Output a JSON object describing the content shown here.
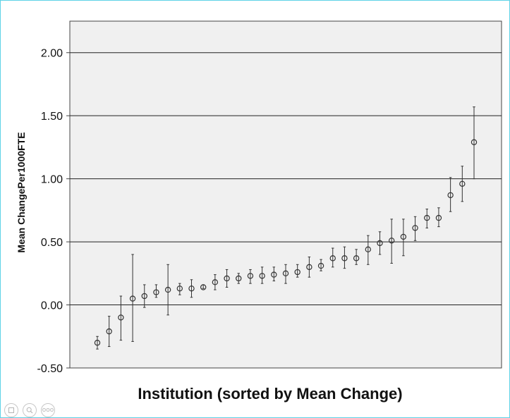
{
  "chart_data": {
    "type": "scatter",
    "title": "",
    "xlabel": "Institution (sorted by Mean Change)",
    "ylabel": "Mean ChangePer1000FTE",
    "ylim": [
      -0.5,
      2.25
    ],
    "yticks": [
      -0.5,
      0.0,
      0.5,
      1.0,
      1.5,
      2.0
    ],
    "ytick_labels": [
      "-0.50",
      "0.00",
      "0.50",
      "1.00",
      "1.50",
      "2.00"
    ],
    "grid": "horizontal",
    "legend": "none",
    "series": [
      {
        "marker": "open-circle",
        "error_bars": true,
        "points": [
          {
            "x": 1,
            "y": -0.3,
            "low": -0.35,
            "high": -0.25
          },
          {
            "x": 2,
            "y": -0.21,
            "low": -0.33,
            "high": -0.09
          },
          {
            "x": 3,
            "y": -0.1,
            "low": -0.28,
            "high": 0.07
          },
          {
            "x": 4,
            "y": 0.05,
            "low": -0.29,
            "high": 0.4
          },
          {
            "x": 5,
            "y": 0.07,
            "low": -0.02,
            "high": 0.16
          },
          {
            "x": 6,
            "y": 0.1,
            "low": 0.06,
            "high": 0.16
          },
          {
            "x": 7,
            "y": 0.12,
            "low": -0.08,
            "high": 0.32
          },
          {
            "x": 8,
            "y": 0.13,
            "low": 0.08,
            "high": 0.17
          },
          {
            "x": 9,
            "y": 0.13,
            "low": 0.06,
            "high": 0.2
          },
          {
            "x": 10,
            "y": 0.14,
            "low": 0.13,
            "high": 0.16
          },
          {
            "x": 11,
            "y": 0.18,
            "low": 0.12,
            "high": 0.24
          },
          {
            "x": 12,
            "y": 0.21,
            "low": 0.14,
            "high": 0.28
          },
          {
            "x": 13,
            "y": 0.21,
            "low": 0.17,
            "high": 0.25
          },
          {
            "x": 14,
            "y": 0.23,
            "low": 0.17,
            "high": 0.28
          },
          {
            "x": 15,
            "y": 0.23,
            "low": 0.17,
            "high": 0.3
          },
          {
            "x": 16,
            "y": 0.24,
            "low": 0.19,
            "high": 0.3
          },
          {
            "x": 17,
            "y": 0.25,
            "low": 0.17,
            "high": 0.32
          },
          {
            "x": 18,
            "y": 0.26,
            "low": 0.22,
            "high": 0.32
          },
          {
            "x": 19,
            "y": 0.3,
            "low": 0.22,
            "high": 0.38
          },
          {
            "x": 20,
            "y": 0.31,
            "low": 0.27,
            "high": 0.36
          },
          {
            "x": 21,
            "y": 0.37,
            "low": 0.3,
            "high": 0.45
          },
          {
            "x": 22,
            "y": 0.37,
            "low": 0.29,
            "high": 0.46
          },
          {
            "x": 23,
            "y": 0.37,
            "low": 0.32,
            "high": 0.44
          },
          {
            "x": 24,
            "y": 0.44,
            "low": 0.32,
            "high": 0.55
          },
          {
            "x": 25,
            "y": 0.49,
            "low": 0.4,
            "high": 0.58
          },
          {
            "x": 26,
            "y": 0.51,
            "low": 0.33,
            "high": 0.68
          },
          {
            "x": 27,
            "y": 0.54,
            "low": 0.39,
            "high": 0.68
          },
          {
            "x": 28,
            "y": 0.61,
            "low": 0.51,
            "high": 0.7
          },
          {
            "x": 29,
            "y": 0.69,
            "low": 0.61,
            "high": 0.76
          },
          {
            "x": 30,
            "y": 0.69,
            "low": 0.62,
            "high": 0.77
          },
          {
            "x": 31,
            "y": 0.87,
            "low": 0.74,
            "high": 1.01
          },
          {
            "x": 32,
            "y": 0.96,
            "low": 0.82,
            "high": 1.1
          },
          {
            "x": 33,
            "y": 1.29,
            "low": 1.0,
            "high": 1.57
          }
        ]
      }
    ],
    "colors": {
      "plot_background": "#f0f0f0",
      "gridline": "#222222",
      "marker": "#333333"
    }
  },
  "toolbar": {
    "icons": [
      "zoom-reset-icon",
      "zoom-icon",
      "more-icon"
    ],
    "more_label": "ooo"
  }
}
